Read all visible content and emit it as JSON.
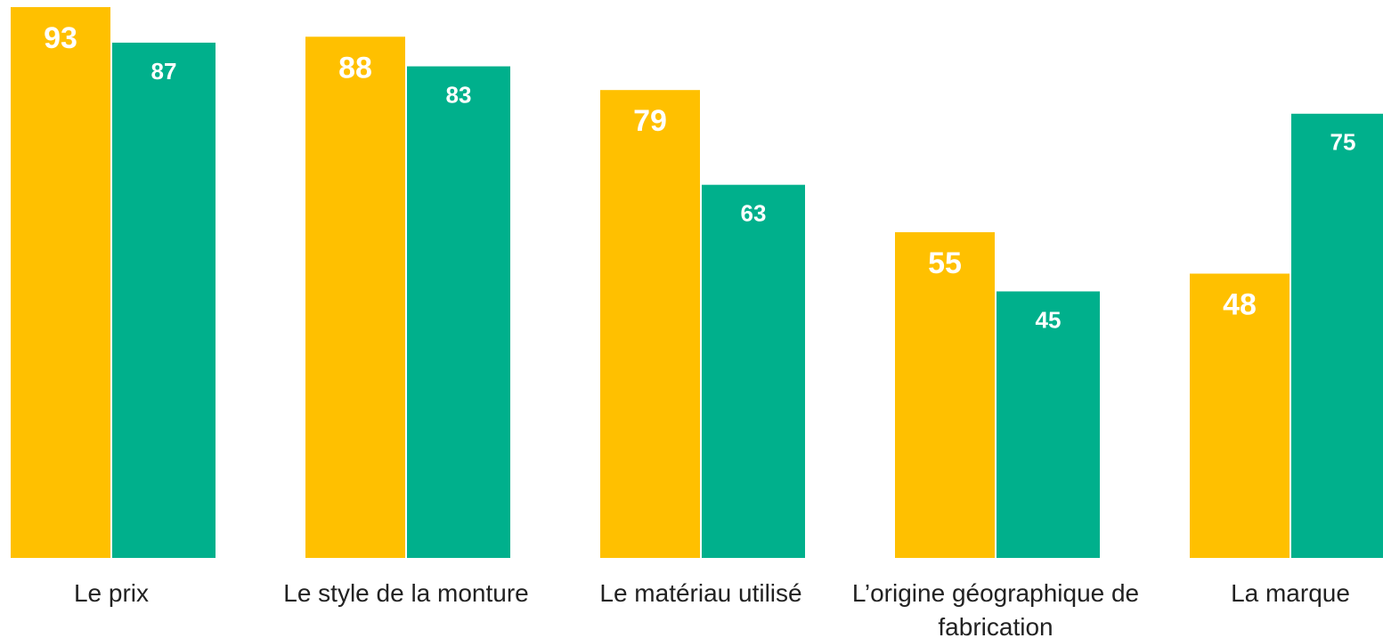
{
  "chart_data": {
    "type": "bar",
    "categories": [
      "Le prix",
      "Le style de la monture",
      "Le matériau utilisé",
      "L’origine géographique de fabrication",
      "La marque"
    ],
    "series": [
      {
        "color": "#FFC000",
        "values": [
          93,
          88,
          79,
          55,
          48
        ]
      },
      {
        "color": "#00B08C",
        "values": [
          87,
          83,
          63,
          45,
          75
        ]
      }
    ],
    "ylim": [
      0,
      93
    ]
  }
}
